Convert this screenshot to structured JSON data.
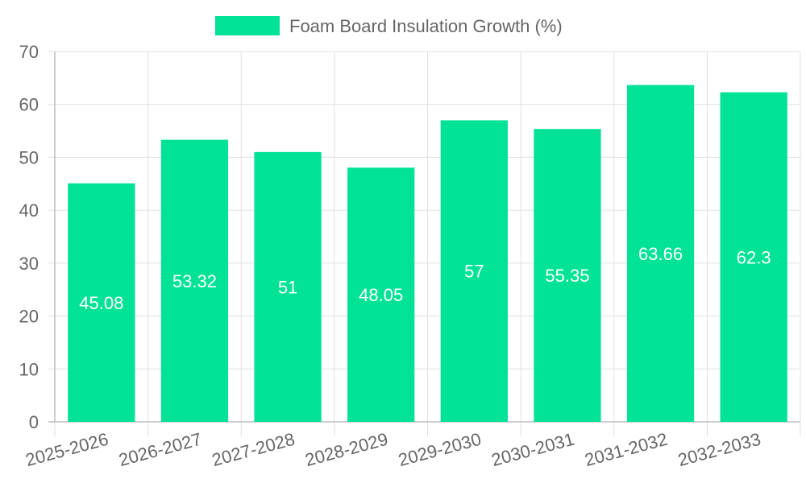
{
  "chart_data": {
    "type": "bar",
    "categories": [
      "2025-2026",
      "2026-2027",
      "2027-2028",
      "2028-2029",
      "2029-2030",
      "2030-2031",
      "2031-2032",
      "2032-2033"
    ],
    "series": [
      {
        "name": "Foam Board Insulation Growth (%)",
        "values": [
          45.08,
          53.32,
          51,
          48.05,
          57,
          55.35,
          63.66,
          62.3
        ],
        "color": "#00e396"
      }
    ],
    "ylim": [
      0,
      70
    ],
    "yticks": [
      0,
      10,
      20,
      30,
      40,
      50,
      60,
      70
    ],
    "grid": true,
    "legend_position": "top",
    "data_labels": true
  }
}
